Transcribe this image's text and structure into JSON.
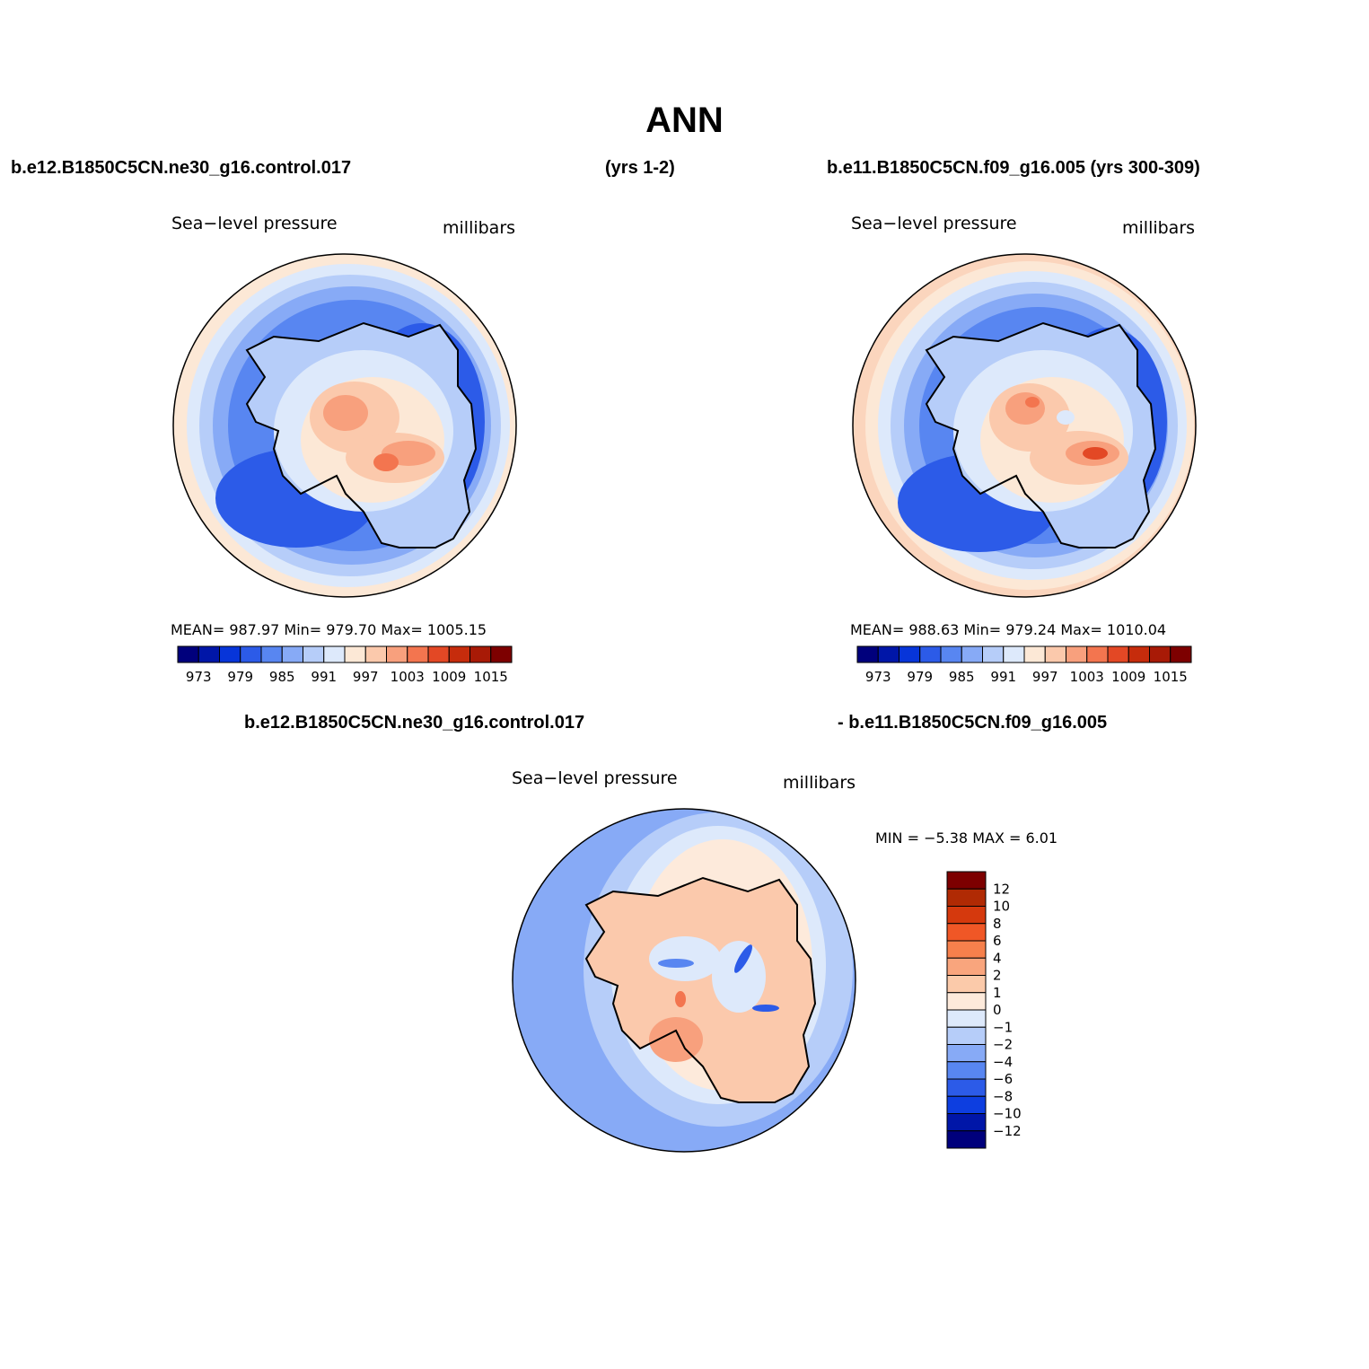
{
  "title": "ANN",
  "header": {
    "left_case": "b.e12.B1850C5CN.ne30_g16.control.017",
    "left_years": "(yrs 1-2)",
    "right_case": "b.e11.B1850C5CN.f09_g16.005 (yrs 300-309)",
    "diff_case_a": "b.e12.B1850C5CN.ne30_g16.control.017",
    "diff_case_b": "- b.e11.B1850C5CN.f09_g16.005"
  },
  "panels": [
    {
      "id": "test",
      "variable": "Sea−level pressure",
      "units": "millibars",
      "stats": "MEAN=  987.97   Min=  979.70   Max=  1005.15"
    },
    {
      "id": "control",
      "variable": "Sea−level pressure",
      "units": "millibars",
      "stats": "MEAN=  988.63   Min=  979.24   Max=  1010.04"
    },
    {
      "id": "difference",
      "variable": "Sea−level pressure",
      "units": "millibars",
      "stats": "MIN =    −5.38  MAX =     6.01"
    }
  ],
  "colorbar_main": {
    "labels": [
      "973",
      "979",
      "985",
      "991",
      "997",
      "1003",
      "1009",
      "1015"
    ],
    "colors": [
      "#00007c",
      "#0016a8",
      "#0735d9",
      "#2c5be8",
      "#5886f1",
      "#87aaf6",
      "#b6cdf9",
      "#dde9fb",
      "#fce8d6",
      "#fbc9ac",
      "#f8a07d",
      "#f3754f",
      "#e34825",
      "#c62c0c",
      "#a81a06",
      "#7d0000"
    ]
  },
  "colorbar_diff": {
    "labels": [
      "12",
      "10",
      "8",
      "6",
      "4",
      "2",
      "1",
      "0",
      "−1",
      "−2",
      "−4",
      "−6",
      "−8",
      "−10",
      "−12"
    ],
    "colors": [
      "#7d0000",
      "#b02a04",
      "#d5390d",
      "#f05726",
      "#f6804c",
      "#f9a57d",
      "#fbcaaa",
      "#fdeadb",
      "#dde9fb",
      "#b6cdf9",
      "#87aaf6",
      "#5886f1",
      "#2c5be8",
      "#0d3ee0",
      "#0016a8",
      "#00007c"
    ]
  }
}
